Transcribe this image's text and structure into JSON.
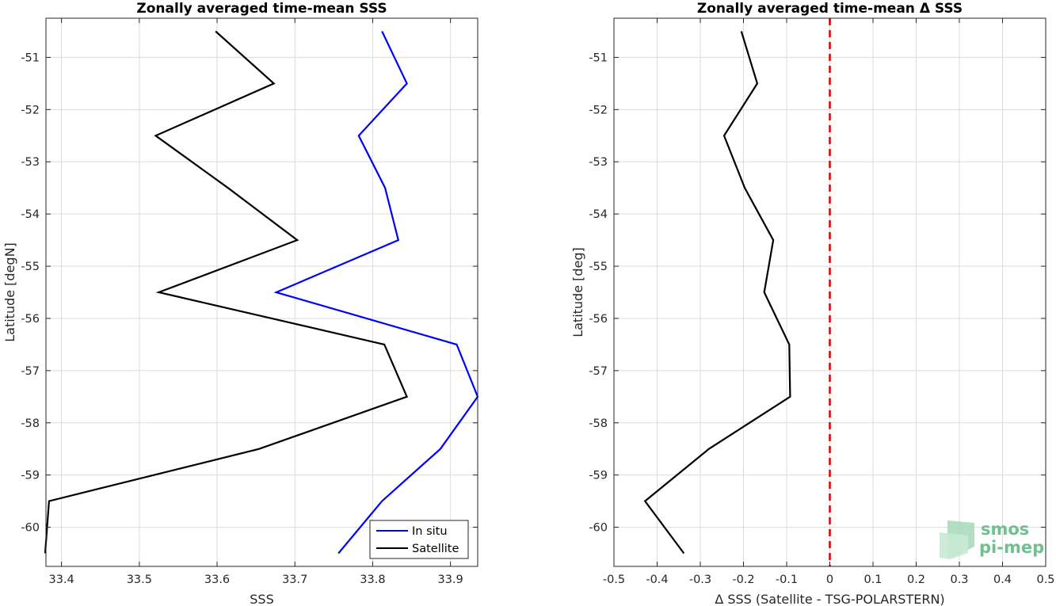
{
  "chart_data": [
    {
      "type": "line",
      "title": "Zonally averaged time-mean SSS",
      "xlabel": "SSS",
      "ylabel": "Latitude [degN]",
      "xlim": [
        33.38,
        33.935
      ],
      "ylim": [
        -60.75,
        -50.25
      ],
      "xticks": [
        33.4,
        33.5,
        33.6,
        33.7,
        33.8,
        33.9
      ],
      "yticks": [
        -51,
        -52,
        -53,
        -54,
        -55,
        -56,
        -57,
        -58,
        -59,
        -60
      ],
      "grid": true,
      "legend": "bottom-right",
      "series": [
        {
          "name": "In situ",
          "color": "#0000ff",
          "x": [
            33.812,
            33.844,
            33.782,
            33.816,
            33.833,
            33.676,
            33.908,
            33.935,
            33.887,
            33.812,
            33.756
          ],
          "y": [
            -50.5,
            -51.5,
            -52.5,
            -53.5,
            -54.5,
            -55.5,
            -56.5,
            -57.5,
            -58.5,
            -59.5,
            -60.5
          ]
        },
        {
          "name": "Satellite",
          "color": "#000000",
          "x": [
            33.598,
            33.673,
            33.521,
            33.614,
            33.703,
            33.525,
            33.815,
            33.844,
            33.654,
            33.384,
            33.379
          ],
          "y": [
            -50.5,
            -51.5,
            -52.5,
            -53.5,
            -54.5,
            -55.5,
            -56.5,
            -57.5,
            -58.5,
            -59.5,
            -60.5
          ]
        }
      ]
    },
    {
      "type": "line",
      "title": "Zonally averaged time-mean Δ SSS",
      "xlabel": "Δ SSS (Satellite - TSG-POLARSTERN)",
      "ylabel": "Latitude [deg]",
      "xlim": [
        -0.5,
        0.5
      ],
      "ylim": [
        -60.75,
        -50.25
      ],
      "xticks": [
        -0.5,
        -0.4,
        -0.3,
        -0.2,
        -0.1,
        0,
        0.1,
        0.2,
        0.3,
        0.4,
        0.5
      ],
      "yticks": [
        -51,
        -52,
        -53,
        -54,
        -55,
        -56,
        -57,
        -58,
        -59,
        -60
      ],
      "grid": true,
      "reference_line": {
        "x": 0,
        "color": "#e00000",
        "style": "dashed"
      },
      "series": [
        {
          "color": "#000000",
          "x": [
            -0.205,
            -0.168,
            -0.245,
            -0.197,
            -0.131,
            -0.152,
            -0.094,
            -0.092,
            -0.28,
            -0.428,
            -0.338
          ],
          "y": [
            -50.5,
            -51.5,
            -52.5,
            -53.5,
            -54.5,
            -55.5,
            -56.5,
            -57.5,
            -58.5,
            -59.5,
            -60.5
          ]
        }
      ]
    }
  ],
  "logo": {
    "line1": "smos",
    "line2": "pi-mep",
    "color": "#6fbf8f"
  }
}
